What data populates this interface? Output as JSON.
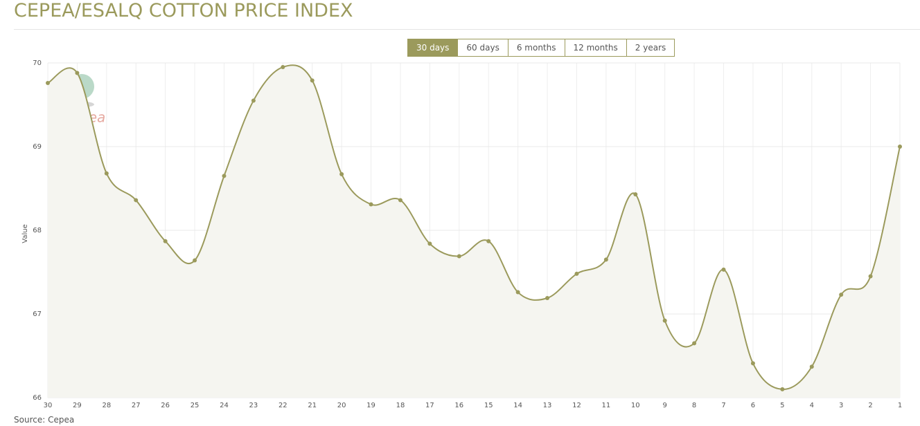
{
  "header": {
    "title": "CEPEA/ESALQ COTTON PRICE INDEX"
  },
  "buttons": [
    "30 days",
    "60 days",
    "6 months",
    "12 months",
    "2 years"
  ],
  "logo_text": "cepea",
  "source": "Source: Cepea",
  "chart_data": {
    "type": "line",
    "y_label": "Value",
    "categories": [
      "30",
      "29",
      "28",
      "27",
      "26",
      "25",
      "24",
      "23",
      "22",
      "21",
      "20",
      "19",
      "18",
      "17",
      "16",
      "15",
      "14",
      "13",
      "12",
      "11",
      "10",
      "9",
      "8",
      "7",
      "6",
      "5",
      "4",
      "3",
      "2",
      "1"
    ],
    "series": [
      {
        "name": "Value",
        "color": "#9b9a5c",
        "values": [
          69.76,
          69.88,
          68.68,
          68.36,
          67.87,
          67.64,
          68.65,
          69.55,
          69.95,
          69.79,
          68.67,
          68.31,
          68.36,
          67.84,
          67.69,
          67.87,
          67.26,
          67.19,
          67.48,
          67.65,
          68.43,
          66.92,
          66.65,
          67.53,
          66.41,
          66.1,
          66.37,
          67.23,
          67.45,
          69.0
        ]
      }
    ],
    "ylim": [
      66,
      70
    ],
    "yticks": [
      66,
      67,
      68,
      69,
      70
    ],
    "grid": true
  }
}
